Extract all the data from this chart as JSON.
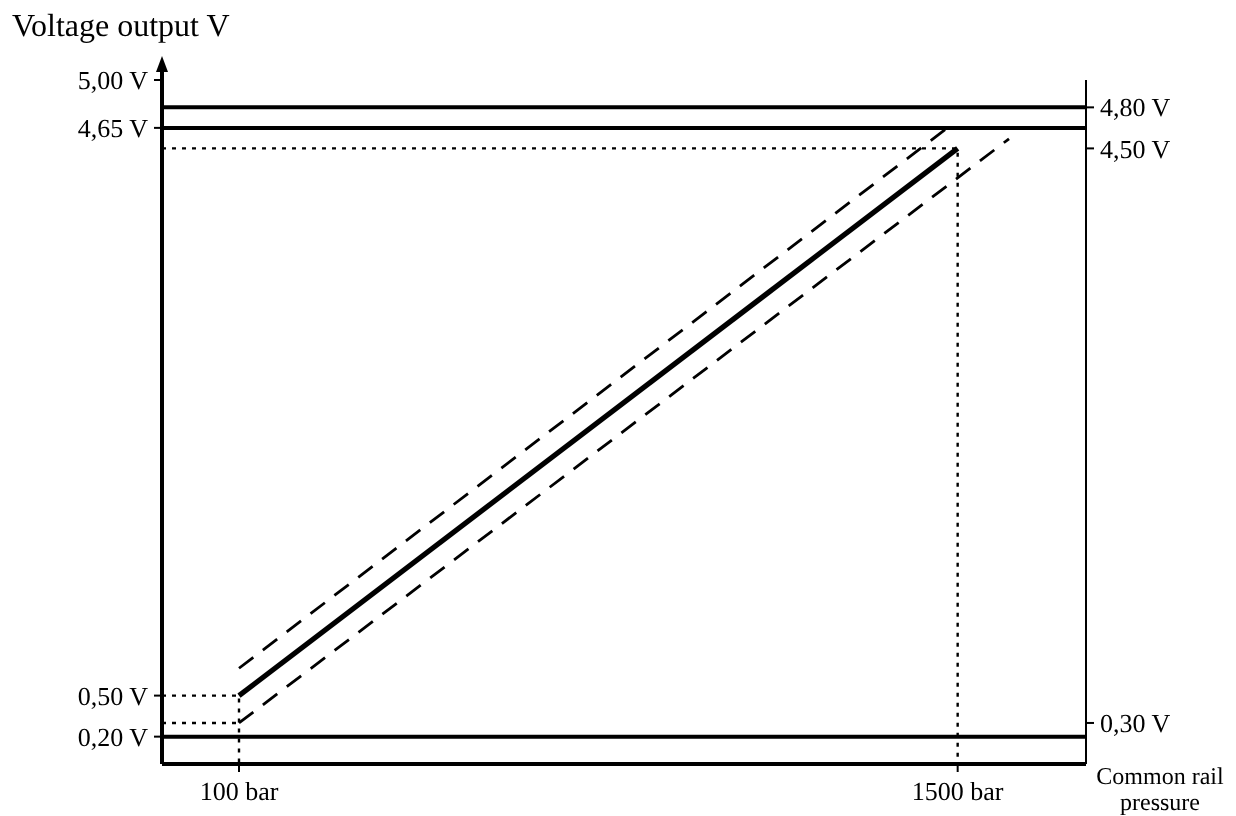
{
  "chart_data": {
    "type": "line",
    "title": "Voltage output V",
    "xlabel": "Common rail pressure",
    "xlim": [
      -50,
      1750
    ],
    "ylim": [
      0,
      5.0
    ],
    "y2lim": [
      0,
      5.0
    ],
    "xticks": [
      {
        "value": 100,
        "label": "100 bar"
      },
      {
        "value": 1500,
        "label": "1500 bar"
      }
    ],
    "yticks": [
      {
        "value": 0.2,
        "label": "0,20 V"
      },
      {
        "value": 0.5,
        "label": "0,50 V"
      },
      {
        "value": 4.65,
        "label": "4,65 V"
      },
      {
        "value": 5.0,
        "label": "5,00 V"
      }
    ],
    "y2ticks": [
      {
        "value": 0.3,
        "label": "0,30 V"
      },
      {
        "value": 4.5,
        "label": "4,50 V"
      },
      {
        "value": 4.8,
        "label": "4,80 V"
      }
    ],
    "marker": "none",
    "ref_lines": [
      {
        "axis": "y",
        "value": 4.8,
        "color": "#000000",
        "line_style": "solid"
      },
      {
        "axis": "y",
        "value": 4.65,
        "color": "#000000",
        "line_style": "solid"
      },
      {
        "axis": "y",
        "value": 0.2,
        "color": "#000000",
        "line_style": "solid"
      }
    ],
    "series": [
      {
        "color": "#000000",
        "line_style": "solid",
        "x": [
          100,
          1500
        ],
        "values": [
          0.5,
          4.5
        ]
      },
      {
        "color": "#000000",
        "line_style": "dashed",
        "x": [
          100,
          1480
        ],
        "values": [
          0.7,
          4.65
        ]
      },
      {
        "color": "#000000",
        "line_style": "dashed",
        "x": [
          100,
          1600
        ],
        "values": [
          0.3,
          4.57
        ]
      },
      {
        "color": "#000000",
        "line_style": "dotted",
        "x": [
          -50,
          1500,
          1500
        ],
        "values": [
          4.5,
          4.5,
          0
        ]
      },
      {
        "color": "#000000",
        "line_style": "dotted",
        "x": [
          -50,
          100,
          100
        ],
        "values": [
          0.5,
          0.5,
          0
        ]
      },
      {
        "color": "#000000",
        "line_style": "dotted",
        "x": [
          -50,
          100
        ],
        "values": [
          0.3,
          0.3
        ]
      }
    ]
  }
}
